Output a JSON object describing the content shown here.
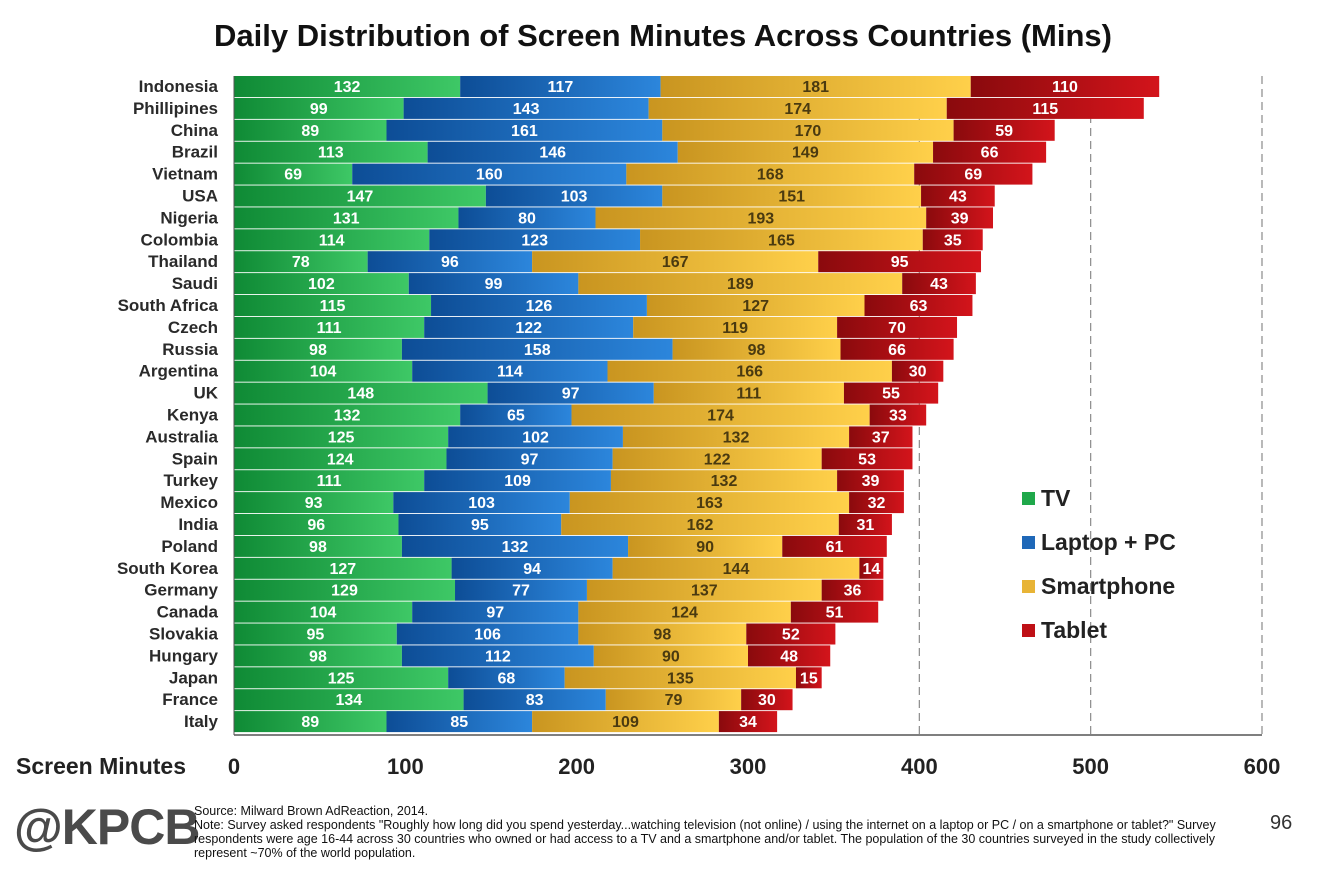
{
  "chart_data": {
    "type": "bar",
    "orientation": "horizontal",
    "stacked": true,
    "title": "Daily Distribution of Screen Minutes Across Countries (Mins)",
    "xlabel": "Screen Minutes",
    "xlim": [
      0,
      600
    ],
    "xticks": [
      "0",
      "100",
      "200",
      "300",
      "400",
      "500",
      "600"
    ],
    "grid": "vertical-dashed",
    "legend_position": "right",
    "categories": [
      "Indonesia",
      "Phillipines",
      "China",
      "Brazil",
      "Vietnam",
      "USA",
      "Nigeria",
      "Colombia",
      "Thailand",
      "Saudi",
      "South Africa",
      "Czech",
      "Russia",
      "Argentina",
      "UK",
      "Kenya",
      "Australia",
      "Spain",
      "Turkey",
      "Mexico",
      "India",
      "Poland",
      "South Korea",
      "Germany",
      "Canada",
      "Slovakia",
      "Hungary",
      "Japan",
      "France",
      "Italy"
    ],
    "series": [
      {
        "name": "TV",
        "color": "#1fa84a",
        "values": [
          132,
          99,
          89,
          113,
          69,
          147,
          131,
          114,
          78,
          102,
          115,
          111,
          98,
          104,
          148,
          132,
          125,
          124,
          111,
          93,
          96,
          98,
          127,
          129,
          104,
          95,
          98,
          125,
          134,
          89
        ]
      },
      {
        "name": "Laptop + PC",
        "color": "#1f68b8",
        "values": [
          117,
          143,
          161,
          146,
          160,
          103,
          80,
          123,
          96,
          99,
          126,
          122,
          158,
          114,
          97,
          65,
          102,
          97,
          109,
          103,
          95,
          132,
          94,
          77,
          97,
          106,
          112,
          68,
          83,
          85
        ]
      },
      {
        "name": "Smartphone",
        "color": "#e8b436",
        "values": [
          181,
          174,
          170,
          149,
          168,
          151,
          193,
          165,
          167,
          189,
          127,
          119,
          98,
          166,
          111,
          174,
          132,
          122,
          132,
          163,
          162,
          90,
          144,
          137,
          124,
          98,
          90,
          135,
          79,
          109
        ]
      },
      {
        "name": "Tablet",
        "color": "#bf1016",
        "values": [
          110,
          115,
          59,
          66,
          69,
          43,
          39,
          35,
          95,
          43,
          63,
          70,
          66,
          30,
          55,
          33,
          37,
          53,
          39,
          32,
          31,
          61,
          14,
          36,
          51,
          52,
          48,
          15,
          30,
          34
        ]
      }
    ]
  },
  "footer": {
    "logo": "@KPCB",
    "source": "Source: Milward Brown AdReaction, 2014.",
    "note": "Note: Survey asked respondents \"Roughly how long did you spend yesterday...watching television (not online) / using the internet on a laptop or PC / on a smartphone or tablet?\" Survey respondents were age 16-44 across 30 countries who owned or had access to a TV and a smartphone and/or tablet. The population of the 30 countries surveyed in the study collectively represent ~70% of the world population.",
    "page_number": "96"
  }
}
